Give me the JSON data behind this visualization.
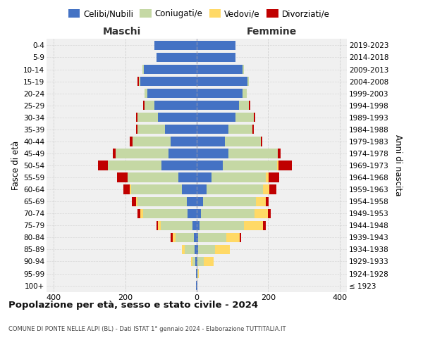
{
  "age_groups": [
    "100+",
    "95-99",
    "90-94",
    "85-89",
    "80-84",
    "75-79",
    "70-74",
    "65-69",
    "60-64",
    "55-59",
    "50-54",
    "45-49",
    "40-44",
    "35-39",
    "30-34",
    "25-29",
    "20-24",
    "15-19",
    "10-14",
    "5-9",
    "0-4"
  ],
  "birth_years": [
    "≤ 1923",
    "1924-1928",
    "1929-1933",
    "1934-1938",
    "1939-1943",
    "1944-1948",
    "1949-1953",
    "1954-1958",
    "1959-1963",
    "1964-1968",
    "1969-1973",
    "1974-1978",
    "1979-1983",
    "1984-1988",
    "1989-1993",
    "1994-1998",
    "1999-2003",
    "2004-2008",
    "2009-2013",
    "2014-2018",
    "2019-2023"
  ],
  "colors": {
    "celibi": "#4472c4",
    "coniugati": "#c5d8a4",
    "vedovi": "#ffd966",
    "divorziati": "#c00000",
    "background": "#f0f0f0",
    "grid": "#cccccc"
  },
  "maschi": {
    "celibi": [
      1,
      1,
      3,
      5,
      8,
      12,
      25,
      28,
      42,
      52,
      98,
      78,
      72,
      88,
      108,
      118,
      138,
      158,
      148,
      112,
      118
    ],
    "coniugati": [
      0,
      0,
      8,
      28,
      52,
      88,
      125,
      138,
      142,
      142,
      150,
      148,
      108,
      78,
      58,
      28,
      8,
      4,
      4,
      0,
      0
    ],
    "vedovi": [
      0,
      0,
      4,
      8,
      8,
      8,
      8,
      4,
      4,
      0,
      0,
      0,
      0,
      0,
      0,
      0,
      0,
      0,
      0,
      0,
      0
    ],
    "divorziati": [
      0,
      0,
      0,
      0,
      4,
      4,
      8,
      12,
      18,
      28,
      28,
      8,
      8,
      4,
      4,
      4,
      0,
      4,
      0,
      0,
      0
    ]
  },
  "femmine": {
    "celibi": [
      1,
      1,
      2,
      3,
      4,
      8,
      12,
      18,
      28,
      42,
      72,
      88,
      78,
      88,
      108,
      118,
      128,
      142,
      128,
      108,
      108
    ],
    "coniugati": [
      0,
      2,
      18,
      48,
      78,
      125,
      150,
      148,
      158,
      152,
      152,
      138,
      102,
      68,
      52,
      28,
      12,
      4,
      4,
      0,
      0
    ],
    "vedovi": [
      0,
      2,
      28,
      42,
      38,
      52,
      38,
      28,
      18,
      8,
      4,
      0,
      0,
      0,
      0,
      0,
      0,
      0,
      0,
      0,
      0
    ],
    "divorziati": [
      0,
      0,
      0,
      0,
      4,
      8,
      8,
      8,
      18,
      28,
      38,
      8,
      4,
      4,
      4,
      4,
      0,
      0,
      0,
      0,
      0
    ]
  },
  "title": "Popolazione per età, sesso e stato civile - 2024",
  "subtitle": "COMUNE DI PONTE NELLE ALPI (BL) - Dati ISTAT 1° gennaio 2024 - Elaborazione TUTTITALIA.IT",
  "xlabel_left": "Maschi",
  "xlabel_right": "Femmine",
  "ylabel_left": "Fasce di età",
  "ylabel_right": "Anni di nascita",
  "xlim": 420,
  "legend_labels": [
    "Celibi/Nubili",
    "Coniugati/e",
    "Vedovi/e",
    "Divorziati/e"
  ]
}
